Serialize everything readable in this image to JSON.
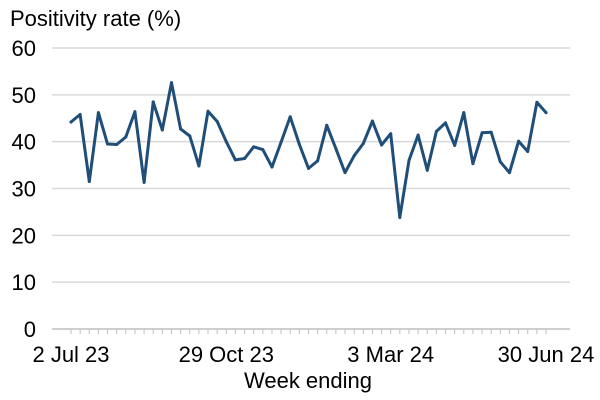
{
  "chart_data": {
    "type": "line",
    "title": "Positivity rate (%)",
    "xlabel": "Week ending",
    "ylabel": "",
    "ylim": [
      0,
      60
    ],
    "yticks": [
      0,
      10,
      20,
      30,
      40,
      50,
      60
    ],
    "x_tick_labels": [
      {
        "label": "2 Jul 23",
        "index": 0
      },
      {
        "label": "29 Oct 23",
        "index": 17
      },
      {
        "label": "3 Mar 24",
        "index": 35
      },
      {
        "label": "30 Jun 24",
        "index": 52
      }
    ],
    "grid": true,
    "legend": "none",
    "line_color": "#1f4e79",
    "series": [
      {
        "values": [
          44.2,
          45.8,
          31.5,
          46.2,
          39.5,
          39.4,
          41.0,
          46.4,
          31.3,
          48.5,
          42.5,
          52.6,
          42.7,
          41.2,
          34.8,
          46.5,
          44.3,
          40.0,
          36.1,
          36.4,
          38.9,
          38.3,
          34.6,
          39.9,
          45.3,
          39.4,
          34.3,
          35.9,
          43.5,
          38.5,
          33.4,
          37.0,
          39.6,
          44.4,
          39.3,
          41.7,
          23.8,
          36.0,
          41.4,
          33.9,
          42.2,
          44.0,
          39.2,
          46.2,
          35.3,
          41.9,
          42.0,
          35.7,
          33.4,
          40.1,
          37.9,
          48.4,
          46.2
        ]
      }
    ]
  }
}
